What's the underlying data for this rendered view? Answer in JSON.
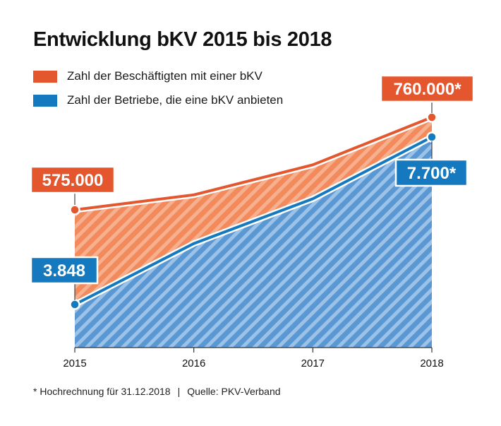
{
  "title": "Entwicklung bKV 2015 bis 2018",
  "legend": [
    {
      "label": "Zahl der Beschäftigten mit einer bKV",
      "color": "#E4572E"
    },
    {
      "label": "Zahl der Betriebe, die eine bKV anbieten",
      "color": "#1479BE"
    }
  ],
  "footnote": {
    "left": "* Hochrechnung für 31.12.2018",
    "separator": "|",
    "right": "Quelle: PKV-Verband"
  },
  "chart_data": {
    "type": "area",
    "title": "Entwicklung bKV 2015 bis 2018",
    "x": [
      "2015",
      "2016",
      "2017",
      "2018"
    ],
    "series": [
      {
        "name": "Zahl der Beschäftigten mit einer bKV",
        "color": "#E4572E",
        "values": [
          575000,
          605000,
          665000,
          760000
        ],
        "value_labels": [
          {
            "index": 0,
            "text": "575.000"
          },
          {
            "index": 3,
            "text": "760.000*"
          }
        ]
      },
      {
        "name": "Zahl der Betriebe, die eine bKV anbieten",
        "color": "#1479BE",
        "values": [
          3848,
          5250,
          6280,
          7700
        ],
        "value_labels": [
          {
            "index": 0,
            "text": "3.848"
          },
          {
            "index": 3,
            "text": "7.700*"
          }
        ]
      }
    ],
    "grid": false,
    "legend_position": "top-left"
  }
}
